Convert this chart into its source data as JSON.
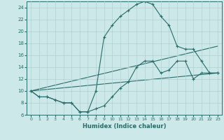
{
  "xlabel": "Humidex (Indice chaleur)",
  "bg_color": "#cce8e8",
  "grid_color": "#b0d0d0",
  "line_color": "#2a6b6b",
  "xlim": [
    -0.5,
    23.5
  ],
  "ylim": [
    6,
    25
  ],
  "yticks": [
    6,
    8,
    10,
    12,
    14,
    16,
    18,
    20,
    22,
    24
  ],
  "xticks": [
    0,
    1,
    2,
    3,
    4,
    5,
    6,
    7,
    8,
    9,
    10,
    11,
    12,
    13,
    14,
    15,
    16,
    17,
    18,
    19,
    20,
    21,
    22,
    23
  ],
  "curve1_x": [
    0,
    1,
    2,
    3,
    4,
    5,
    6,
    7,
    8,
    9,
    10,
    11,
    12,
    13,
    14,
    15,
    16,
    17,
    18,
    19,
    20,
    21,
    22,
    23
  ],
  "curve1_y": [
    10,
    9,
    9,
    8.5,
    8,
    8,
    6.5,
    6.5,
    7,
    7.5,
    9,
    10.5,
    11.5,
    14,
    15,
    15,
    13,
    13.5,
    15,
    15,
    12,
    13,
    13,
    13
  ],
  "curve2_x": [
    0,
    1,
    2,
    3,
    4,
    5,
    6,
    7,
    8,
    9,
    10,
    11,
    12,
    13,
    14,
    15,
    16,
    17,
    18,
    19,
    20,
    21,
    22,
    23
  ],
  "curve2_y": [
    10,
    9,
    9,
    8.5,
    8,
    8,
    6.5,
    6.5,
    10,
    19,
    21,
    22.5,
    23.5,
    24.5,
    25,
    24.5,
    22.5,
    21,
    17.5,
    17,
    17,
    15,
    13,
    13
  ],
  "line1_x": [
    0,
    23
  ],
  "line1_y": [
    10,
    17.5
  ],
  "line2_x": [
    0,
    23
  ],
  "line2_y": [
    10,
    13
  ]
}
